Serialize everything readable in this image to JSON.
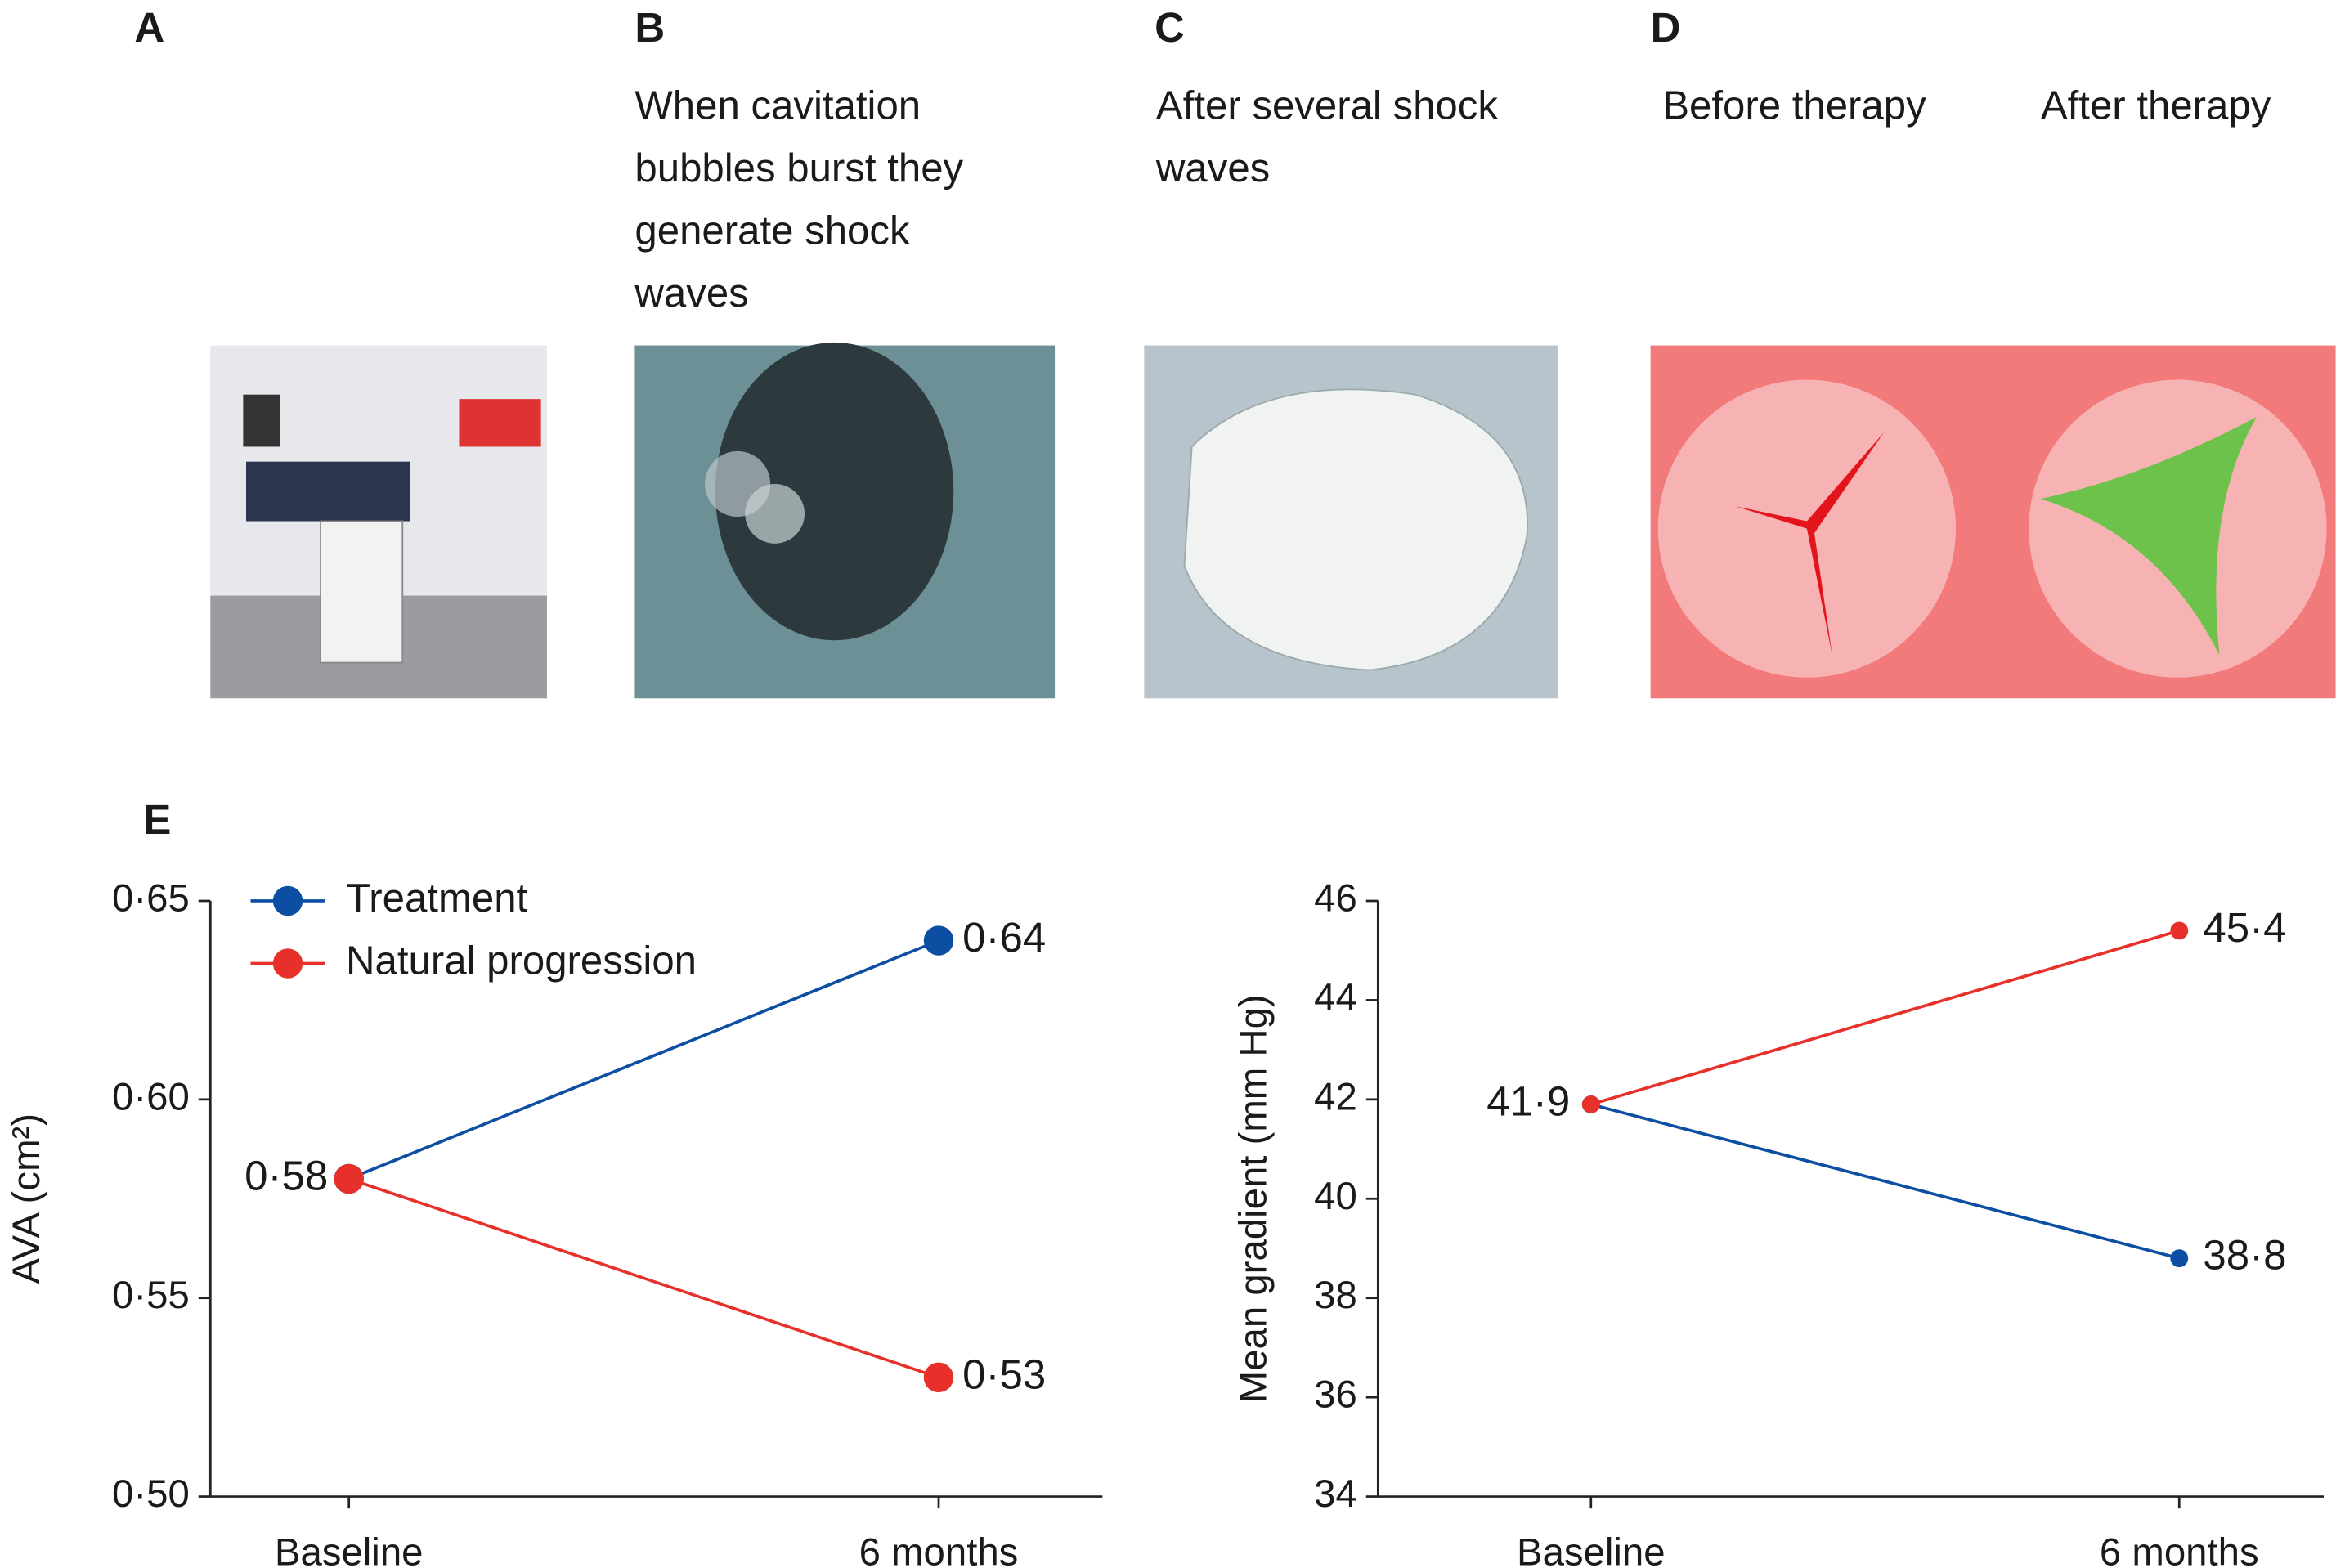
{
  "panels": [
    {
      "label": "A"
    },
    {
      "label": "B",
      "caption": [
        "When cavitation",
        "bubbles burst they",
        "generate shock",
        "waves"
      ]
    },
    {
      "label": "C",
      "caption": [
        "After several shock",
        "waves"
      ]
    },
    {
      "label": "D",
      "caption": [
        "Before therapy",
        "After therapy"
      ]
    },
    {
      "label": "E"
    }
  ],
  "chart_data": [
    {
      "type": "line",
      "ylabel": "AVA (cm²)",
      "categories": [
        "Baseline",
        "6 months"
      ],
      "series": [
        {
          "name": "Treatment",
          "color": "#0b4ea2",
          "values": [
            0.58,
            0.64
          ],
          "value_labels": [
            null,
            "0·64"
          ]
        },
        {
          "name": "Natural progression",
          "color": "#e8302a",
          "values": [
            0.58,
            0.53
          ],
          "value_labels": [
            "0·58",
            "0·53"
          ]
        }
      ],
      "ylim": [
        0.5,
        0.65
      ],
      "yticks": [
        {
          "value": 0.5,
          "label": "0·50"
        },
        {
          "value": 0.55,
          "label": "0·55"
        },
        {
          "value": 0.6,
          "label": "0·60"
        },
        {
          "value": 0.65,
          "label": "0·65"
        }
      ],
      "legend": "upper left"
    },
    {
      "type": "line",
      "ylabel": "Mean gradient (mm Hg)",
      "categories": [
        "Baseline",
        "6 months"
      ],
      "series": [
        {
          "color": "#0b4ea2",
          "values": [
            41.9,
            38.8
          ],
          "value_labels": [
            null,
            "38·8"
          ]
        },
        {
          "color": "#e8302a",
          "values": [
            41.9,
            45.4
          ],
          "value_labels": [
            "41·9",
            "45·4"
          ]
        }
      ],
      "ylim": [
        34,
        46
      ],
      "yticks": [
        34,
        36,
        38,
        40,
        42,
        44,
        46
      ]
    }
  ]
}
